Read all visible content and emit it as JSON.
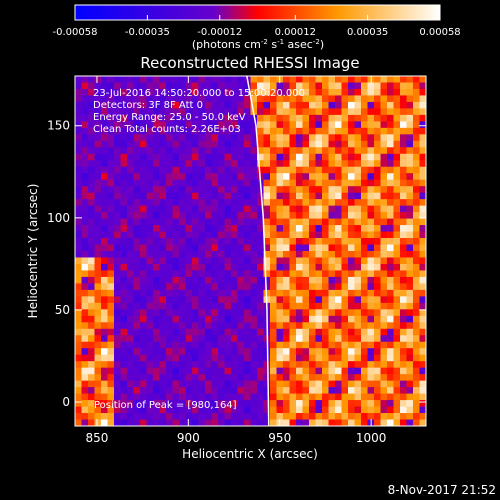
{
  "colorbar": {
    "ticks": [
      "-0.00058",
      "-0.00035",
      "-0.00012",
      "0.00012",
      "0.00035",
      "0.00058"
    ],
    "tick_values": [
      -0.00058,
      -0.00035,
      -0.00012,
      0.00012,
      0.00035,
      0.00058
    ],
    "range": [
      -0.00058,
      0.00058
    ],
    "units_base": "(photons cm",
    "units_exp1": "-2",
    "units_mid": " s",
    "units_exp2": "-1",
    "units_end": " asec",
    "units_exp3": "-2",
    "units_close": ")",
    "colors": [
      "#0000ff",
      "#6600cc",
      "#ff0000",
      "#ff9900",
      "#ffffff"
    ]
  },
  "plot": {
    "title": "Reconstructed RHESSI Image",
    "info_lines": [
      "23-Jul-2016 14:50:20.000 to 15:00:20.000",
      "Detectors: 3F 8F  Att 0",
      "Energy Range: 25.0 - 50.0 keV",
      "Clean     Total counts: 2.26E+03"
    ],
    "peak_text": "Position of Peak = [980,164]",
    "footer_date": "8-Nov-2017 21:52"
  },
  "chart_data": {
    "type": "heatmap",
    "title": "Reconstructed RHESSI Image",
    "xlabel": "Heliocentric X (arcsec)",
    "ylabel": "Heliocentric Y (arcsec)",
    "xlim": [
      838,
      1030
    ],
    "ylim": [
      -13,
      177
    ],
    "x_ticks": [
      850,
      900,
      950,
      1000
    ],
    "y_ticks": [
      0,
      50,
      100,
      150
    ],
    "limb_line": [
      [
        932,
        177
      ],
      [
        937,
        150
      ],
      [
        941,
        100
      ],
      [
        943,
        50
      ],
      [
        944,
        -13
      ]
    ],
    "peak_position": [
      980,
      164
    ]
  }
}
